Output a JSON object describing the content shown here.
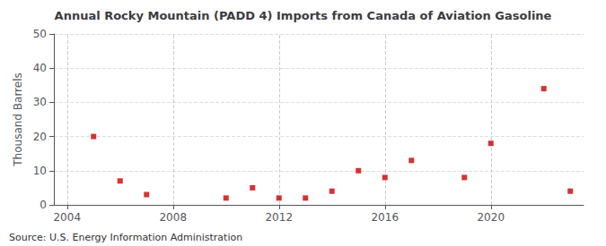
{
  "chart_data": {
    "type": "scatter",
    "title": "Annual Rocky Mountain (PADD 4) Imports from Canada of Aviation Gasoline",
    "ylabel": "Thousand Barrels",
    "annotations": [
      "Source: U.S. Energy Information Administration"
    ],
    "x": [
      2005,
      2006,
      2007,
      2010,
      2011,
      2012,
      2013,
      2014,
      2015,
      2016,
      2017,
      2019,
      2020,
      2022,
      2023
    ],
    "values": [
      20,
      7,
      3,
      2,
      5,
      2,
      2,
      4,
      10,
      8,
      13,
      8,
      18,
      34,
      4
    ],
    "color": "#cc0000",
    "marker": "square",
    "xlim": [
      2003.5,
      2023.5
    ],
    "xticks": [
      2004,
      2008,
      2012,
      2016,
      2020
    ],
    "ylim": [
      0,
      50
    ],
    "yticks": [
      0,
      10,
      20,
      30,
      40,
      50
    ],
    "grid": true
  }
}
